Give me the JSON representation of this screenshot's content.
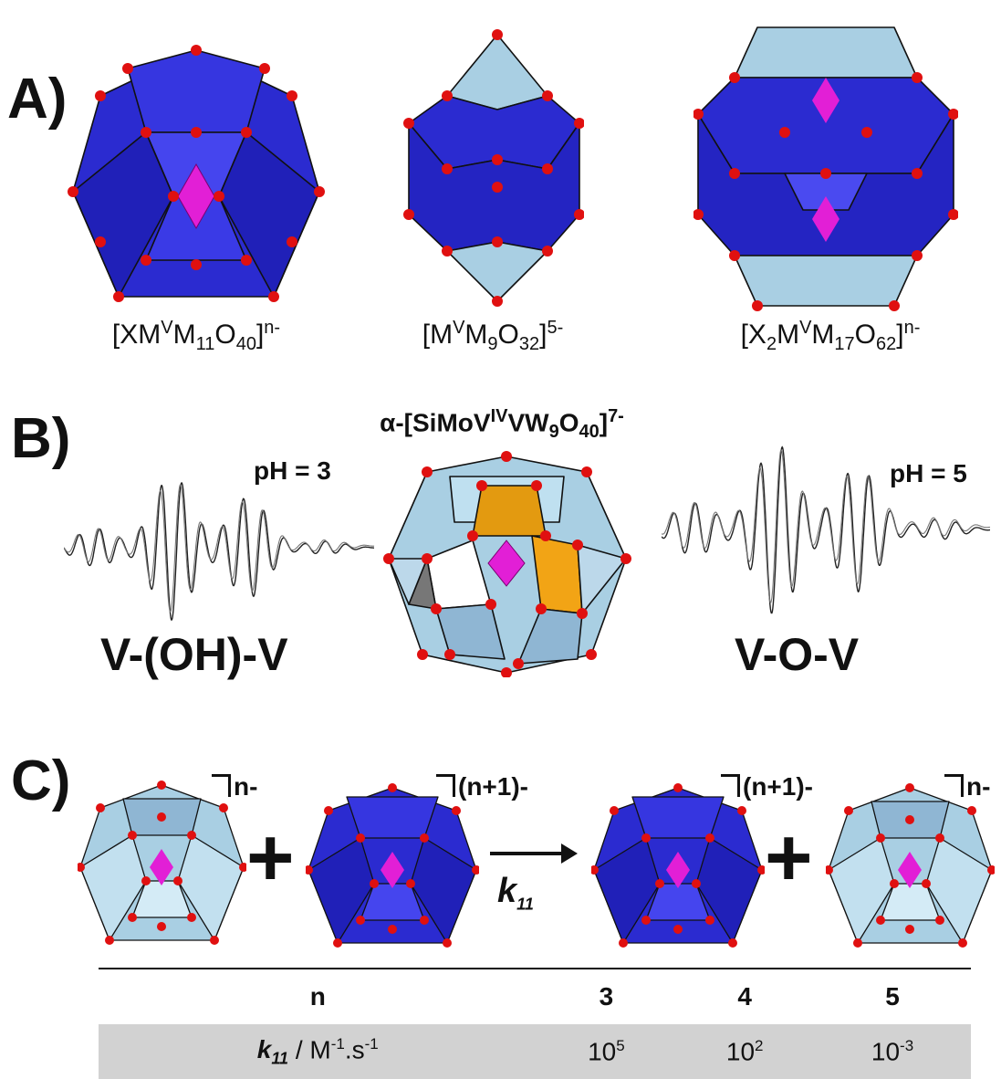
{
  "panel_a": {
    "label": "A)",
    "formulas": [
      {
        "pre": "[XM",
        "sup1": "V",
        "mid": "M",
        "sub1": "11",
        "mid2": "O",
        "sub2": "40",
        "post": "]",
        "charge": "n-"
      },
      {
        "pre": "[M",
        "sup1": "V",
        "mid": "M",
        "sub1": "9",
        "mid2": "O",
        "sub2": "32",
        "post": "]",
        "charge": "5-"
      },
      {
        "pre": "[X",
        "sub0": "2",
        "pre2": "M",
        "sup1": "V",
        "mid": "M",
        "sub1": "17",
        "mid2": "O",
        "sub2": "62",
        "post": "]",
        "charge": "n-"
      }
    ]
  },
  "panel_b": {
    "label": "B)",
    "title_prefix": "α-[SiMoV",
    "title_sup": "IV",
    "title_mid": "VW",
    "title_sub1": "9",
    "title_mid2": "O",
    "title_sub2": "40",
    "title_post": "]",
    "title_charge": "7-",
    "left_ph": "pH = 3",
    "right_ph": "pH = 5",
    "left_species": "V-(OH)-V",
    "right_species": "V-O-V"
  },
  "panel_c": {
    "label": "C)",
    "charges": [
      "n-",
      "(n+1)-",
      "(n+1)-",
      "n-"
    ],
    "plus": "+",
    "rate_label": "k",
    "rate_sub": "11"
  },
  "table": {
    "header": [
      "n",
      "3",
      "4",
      "5"
    ],
    "row_label_k": "k",
    "row_label_sub": "11",
    "row_label_unit": " / M",
    "row_label_sup1": "-1",
    "row_label_mid": ".s",
    "row_label_sup2": "-1",
    "values": [
      {
        "base": "10",
        "exp": "5"
      },
      {
        "base": "10",
        "exp": "2"
      },
      {
        "base": "10",
        "exp": "-3"
      }
    ]
  },
  "colors": {
    "reduced": "#2a2ad6",
    "oxidized": "#a9cfe3",
    "heteroatom": "#e21fd6",
    "oxygen": "#e01010",
    "vanadium_highlight": "#e39a10"
  }
}
